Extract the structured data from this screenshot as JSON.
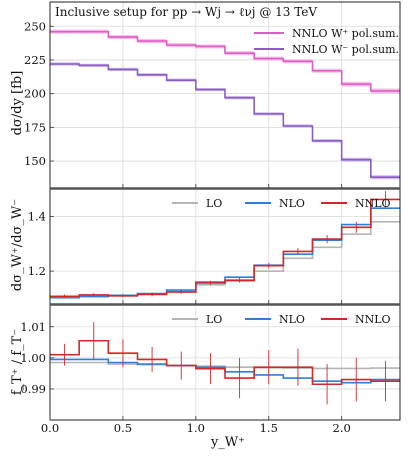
{
  "title": "Inclusive setup for pp → Wj → ℓνj @ 13 TeV",
  "colors": {
    "w_plus": "#e05cc6",
    "w_plus_band": "#f2b3e6",
    "w_minus": "#8a5cc4",
    "w_minus_band": "#c9b2e6",
    "lo": "#b5b5b5",
    "nlo": "#2f7de1",
    "nnlo": "#d62728",
    "grid": "#d9d9d9",
    "divider": "#555555"
  },
  "chart_data": [
    {
      "type": "line",
      "panel": "top",
      "x_edges": [
        0.0,
        0.2,
        0.4,
        0.6,
        0.8,
        1.0,
        1.2,
        1.4,
        1.6,
        1.8,
        2.0,
        2.2,
        2.4
      ],
      "ylabel": "dσ/dy [fb]",
      "ylim": [
        130,
        268
      ],
      "yticks": [
        150,
        175,
        200,
        225,
        250
      ],
      "grid": true,
      "legend_position": "top-right",
      "series": [
        {
          "name": "NNLO W⁺ pol.sum.",
          "values": [
            246,
            246,
            242,
            239,
            236,
            235,
            230,
            226,
            224,
            217,
            207,
            202
          ],
          "band": [
            1.5,
            1.5,
            1.5,
            1.5,
            1.5,
            1.5,
            1.5,
            1.5,
            1.5,
            1.5,
            1.8,
            1.8
          ]
        },
        {
          "name": "NNLO W⁻ pol.sum.",
          "values": [
            222,
            221,
            218,
            214,
            210,
            203,
            197,
            185,
            176,
            165,
            151,
            138
          ],
          "band": [
            1.2,
            1.2,
            1.2,
            1.2,
            1.2,
            1.2,
            1.2,
            1.2,
            1.2,
            1.2,
            1.5,
            1.5
          ]
        }
      ]
    },
    {
      "type": "line",
      "panel": "middle",
      "x_edges": [
        0.0,
        0.2,
        0.4,
        0.6,
        0.8,
        1.0,
        1.2,
        1.4,
        1.6,
        1.8,
        2.0,
        2.2,
        2.4
      ],
      "ylabel": "dσ_W⁺/dσ_W⁻",
      "ylim": [
        1.08,
        1.5
      ],
      "yticks": [
        1.2,
        1.4
      ],
      "grid": true,
      "legend_position": "top",
      "series": [
        {
          "name": "LO",
          "values": [
            1.105,
            1.108,
            1.11,
            1.117,
            1.123,
            1.15,
            1.163,
            1.2,
            1.247,
            1.287,
            1.335,
            1.38
          ]
        },
        {
          "name": "NLO",
          "values": [
            1.103,
            1.107,
            1.112,
            1.118,
            1.131,
            1.16,
            1.178,
            1.222,
            1.262,
            1.313,
            1.37,
            1.43
          ]
        },
        {
          "name": "NNLO",
          "values": [
            1.108,
            1.113,
            1.11,
            1.115,
            1.124,
            1.157,
            1.167,
            1.22,
            1.272,
            1.317,
            1.36,
            1.462
          ],
          "err": [
            0.007,
            0.007,
            0.007,
            0.007,
            0.008,
            0.008,
            0.009,
            0.01,
            0.012,
            0.015,
            0.02,
            0.03
          ]
        }
      ]
    },
    {
      "type": "line",
      "panel": "bottom",
      "x_edges": [
        0.0,
        0.2,
        0.4,
        0.6,
        0.8,
        1.0,
        1.2,
        1.4,
        1.6,
        1.8,
        2.0,
        2.2,
        2.4
      ],
      "xlabel": "y_W⁺",
      "xticks": [
        0.0,
        0.5,
        1.0,
        1.5,
        2.0
      ],
      "xlim": [
        0.0,
        2.4
      ],
      "ylabel": "f_T⁺ / f_T⁻",
      "ylim": [
        0.98,
        1.017
      ],
      "yticks": [
        0.99,
        1.0,
        1.01
      ],
      "grid": true,
      "legend_position": "top",
      "series": [
        {
          "name": "LO",
          "values": [
            0.9985,
            0.9985,
            0.998,
            0.9978,
            0.9975,
            0.9973,
            0.997,
            0.9968,
            0.9967,
            0.9966,
            0.9966,
            0.9967
          ]
        },
        {
          "name": "NLO",
          "values": [
            0.9995,
            0.9995,
            0.9985,
            0.998,
            0.9975,
            0.997,
            0.9955,
            0.9945,
            0.9935,
            0.9925,
            0.992,
            0.993
          ]
        },
        {
          "name": "NNLO",
          "values": [
            1.001,
            1.0055,
            1.0015,
            0.9995,
            0.9975,
            0.9965,
            0.9935,
            0.997,
            0.997,
            0.9915,
            0.993,
            0.9925
          ],
          "err": [
            0.0035,
            0.006,
            0.0045,
            0.004,
            0.0045,
            0.005,
            0.0065,
            0.0055,
            0.006,
            0.0065,
            0.007,
            0.0065
          ]
        }
      ]
    }
  ]
}
